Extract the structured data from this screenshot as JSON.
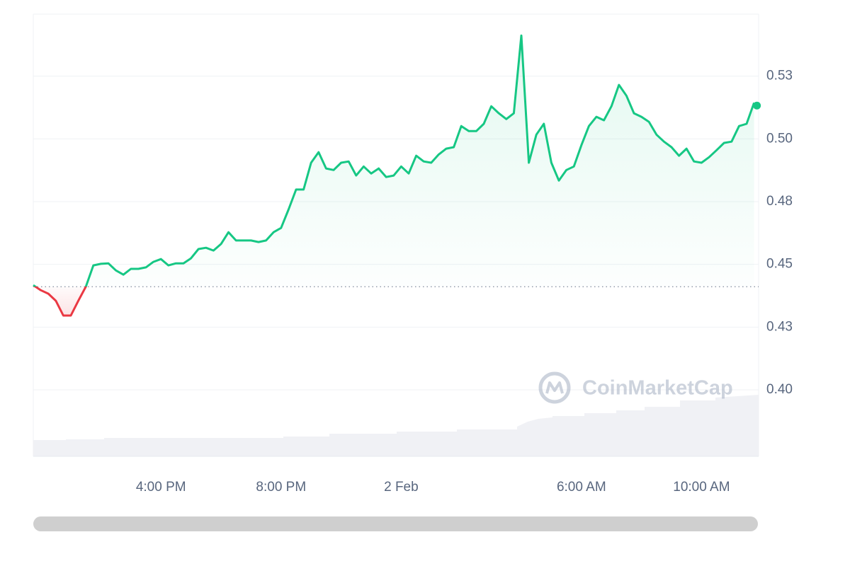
{
  "chart_data": {
    "type": "line",
    "watermark": "CoinMarketCap",
    "categories": [
      null,
      null,
      null,
      null,
      null,
      null,
      null,
      null,
      null,
      null,
      null,
      null,
      null,
      null,
      null,
      null,
      null,
      "4:00 PM",
      null,
      null,
      null,
      null,
      null,
      null,
      null,
      null,
      null,
      null,
      null,
      null,
      null,
      null,
      null,
      "8:00 PM",
      null,
      null,
      null,
      null,
      null,
      null,
      null,
      null,
      null,
      null,
      null,
      null,
      null,
      null,
      null,
      "2 Feb",
      null,
      null,
      null,
      null,
      null,
      null,
      null,
      null,
      null,
      null,
      null,
      null,
      null,
      null,
      null,
      null,
      null,
      null,
      null,
      null,
      null,
      null,
      null,
      "6:00 AM",
      null,
      null,
      null,
      null,
      null,
      null,
      null,
      null,
      null,
      null,
      null,
      null,
      null,
      null,
      null,
      "10:00 AM",
      null,
      null,
      null,
      null,
      null,
      null,
      null
    ],
    "values": [
      0.4417,
      0.4397,
      0.4383,
      0.4355,
      0.4296,
      0.4296,
      0.4355,
      0.4411,
      0.4496,
      0.4502,
      0.4504,
      0.4476,
      0.4459,
      0.4482,
      0.4482,
      0.4488,
      0.451,
      0.4521,
      0.4496,
      0.4504,
      0.4504,
      0.4524,
      0.4561,
      0.4566,
      0.4555,
      0.4581,
      0.4628,
      0.4595,
      0.4595,
      0.4595,
      0.4589,
      0.4595,
      0.4628,
      0.4645,
      0.4719,
      0.4798,
      0.4798,
      0.4905,
      0.4947,
      0.4882,
      0.4876,
      0.4905,
      0.491,
      0.4854,
      0.489,
      0.4862,
      0.4882,
      0.4848,
      0.4854,
      0.489,
      0.4862,
      0.4933,
      0.491,
      0.4905,
      0.4938,
      0.4961,
      0.4967,
      0.5051,
      0.5031,
      0.5031,
      0.506,
      0.513,
      0.5102,
      0.5079,
      0.5102,
      0.5412,
      0.4905,
      0.5017,
      0.506,
      0.4905,
      0.4834,
      0.4876,
      0.489,
      0.4975,
      0.5051,
      0.5088,
      0.5074,
      0.513,
      0.5215,
      0.5172,
      0.5102,
      0.5088,
      0.5068,
      0.5017,
      0.4989,
      0.4967,
      0.4933,
      0.4961,
      0.491,
      0.4905,
      0.4927,
      0.4955,
      0.4984,
      0.4989,
      0.5051,
      0.506,
      0.5144
    ],
    "baseline": 0.4411,
    "up_color": "#16c784",
    "down_color": "#ea3943",
    "ylim": [
      0.3735,
      0.5497
    ],
    "yticks": [
      {
        "value": 0.525,
        "label": "0.53"
      },
      {
        "value": 0.5,
        "label": "0.50"
      },
      {
        "value": 0.475,
        "label": "0.48"
      },
      0.45,
      {
        "value": 0.425,
        "label": "0.43"
      },
      {
        "value": 0.4,
        "label": "0.40"
      }
    ],
    "grid": true
  }
}
